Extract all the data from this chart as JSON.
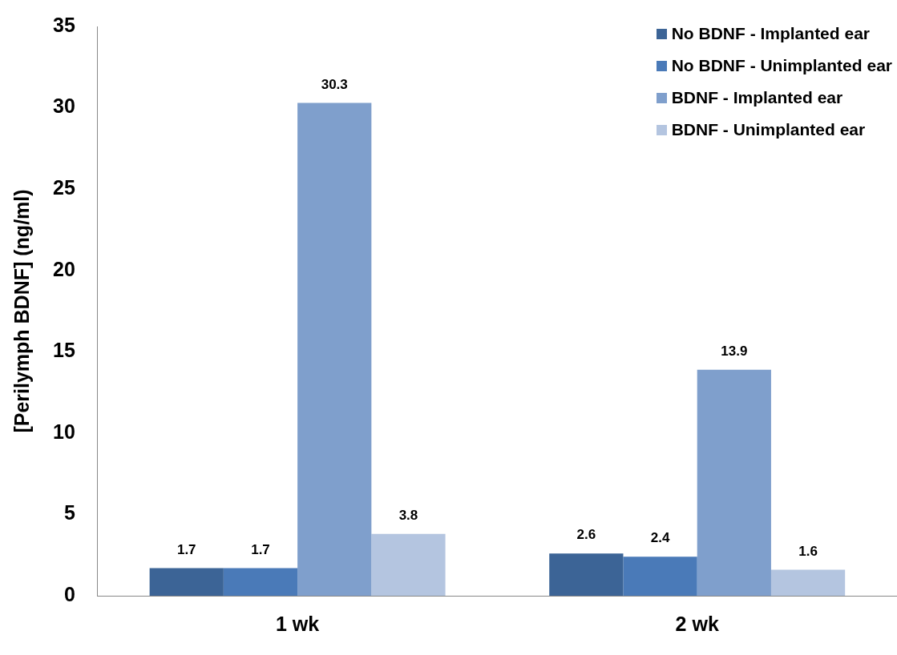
{
  "chart_data": {
    "type": "bar",
    "ylabel": "[Perilymph BDNF] (ng/ml)",
    "categories": [
      "1 wk",
      "2 wk"
    ],
    "series": [
      {
        "name": "No BDNF - Implanted ear",
        "color": "#3c6496",
        "values": [
          1.7,
          2.6
        ]
      },
      {
        "name": "No BDNF - Unimplanted ear",
        "color": "#4a7ab8",
        "values": [
          1.7,
          2.4
        ]
      },
      {
        "name": "BDNF - Implanted ear",
        "color": "#7f9fcc",
        "values": [
          30.3,
          13.9
        ]
      },
      {
        "name": "BDNF - Unimplanted ear",
        "color": "#b4c5e0",
        "values": [
          3.8,
          1.6
        ]
      }
    ],
    "ylim": [
      0,
      35
    ],
    "yticks": [
      0,
      5,
      10,
      15,
      20,
      25,
      30,
      35
    ],
    "grid": false,
    "legend": "top right",
    "data_labels": true
  }
}
